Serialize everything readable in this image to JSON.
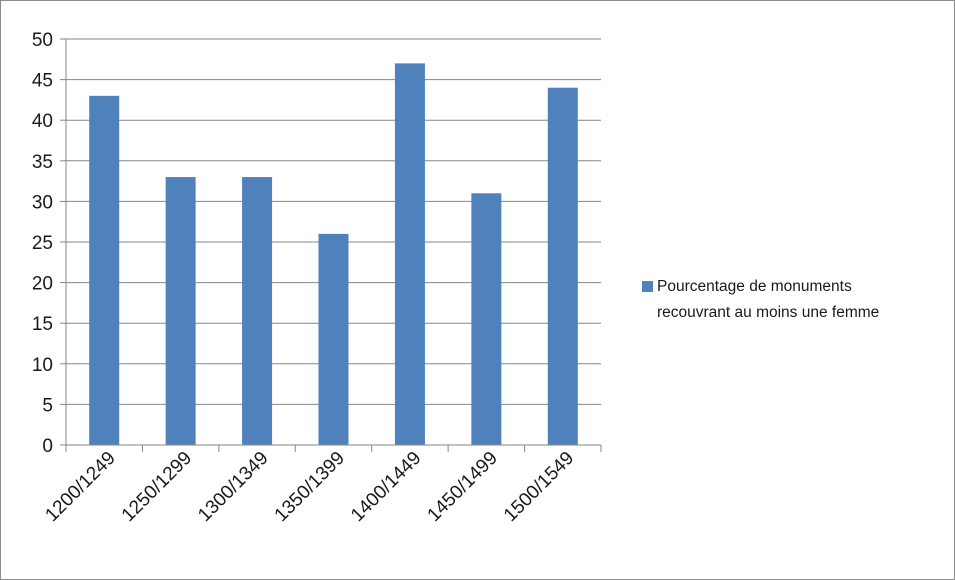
{
  "chart_data": {
    "type": "bar",
    "categories": [
      "1200/1249",
      "1250/1299",
      "1300/1349",
      "1350/1399",
      "1400/1449",
      "1450/1499",
      "1500/1549"
    ],
    "series": [
      {
        "name": "Pourcentage de monuments recouvrant au moins une femme",
        "legend_lines": [
          "Pourcentage de monuments",
          "recouvrant au moins une femme"
        ],
        "values": [
          43,
          33,
          33,
          26,
          47,
          31,
          44
        ],
        "color": "#4f81bd"
      }
    ],
    "title": "",
    "xlabel": "",
    "ylabel": "",
    "ylim": [
      0,
      50
    ],
    "yticks": [
      0,
      5,
      10,
      15,
      20,
      25,
      30,
      35,
      40,
      45,
      50
    ],
    "grid": true,
    "legend_position": "right",
    "colors": {
      "bar": "#4f81bd",
      "grid": "#868686",
      "axis": "#868686"
    }
  }
}
